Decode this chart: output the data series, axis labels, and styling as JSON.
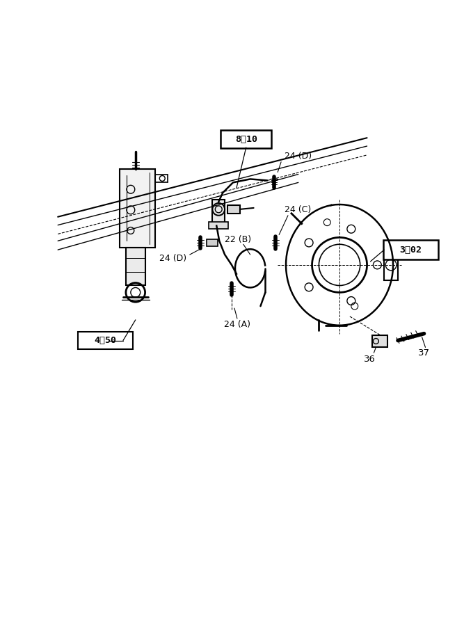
{
  "background_color": "#ffffff",
  "line_color": "#000000",
  "fig_width": 6.67,
  "fig_height": 9.0,
  "label_texts": {
    "box_810": "8-10",
    "box_450": "4-50",
    "box_302": "3-02",
    "lbl_24D_top": "24 (D)",
    "lbl_24D_mid": "24 (D)",
    "lbl_22B": "22 (B)",
    "lbl_24C": "24 (C)",
    "lbl_24A": "24 (A)",
    "lbl_36": "36",
    "lbl_37": "37"
  }
}
